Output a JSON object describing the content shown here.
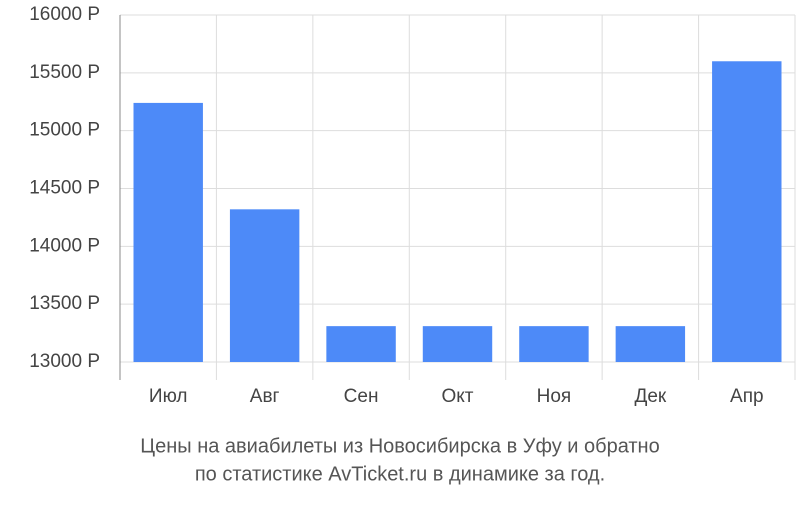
{
  "chart_data": {
    "type": "bar",
    "title": [
      "Цены на авиабилеты из Новосибирска в Уфу и обратно",
      "по статистике AvTicket.ru в динамике за год."
    ],
    "categories": [
      "Июл",
      "Авг",
      "Сен",
      "Окт",
      "Ноя",
      "Дек",
      "Апр"
    ],
    "values": [
      15240,
      14320,
      13310,
      13310,
      13310,
      13310,
      15600
    ],
    "color": "#4d8af8",
    "ylim": [
      13000,
      16000
    ],
    "yticks": [
      {
        "value": 13000,
        "label": "13000 Р"
      },
      {
        "value": 13500,
        "label": "13500 Р"
      },
      {
        "value": 14000,
        "label": "14000 Р"
      },
      {
        "value": 14500,
        "label": "14500 Р"
      },
      {
        "value": 15000,
        "label": "15000 Р"
      },
      {
        "value": 15500,
        "label": "15500 Р"
      },
      {
        "value": 16000,
        "label": "16000 Р"
      }
    ],
    "grid": true
  }
}
